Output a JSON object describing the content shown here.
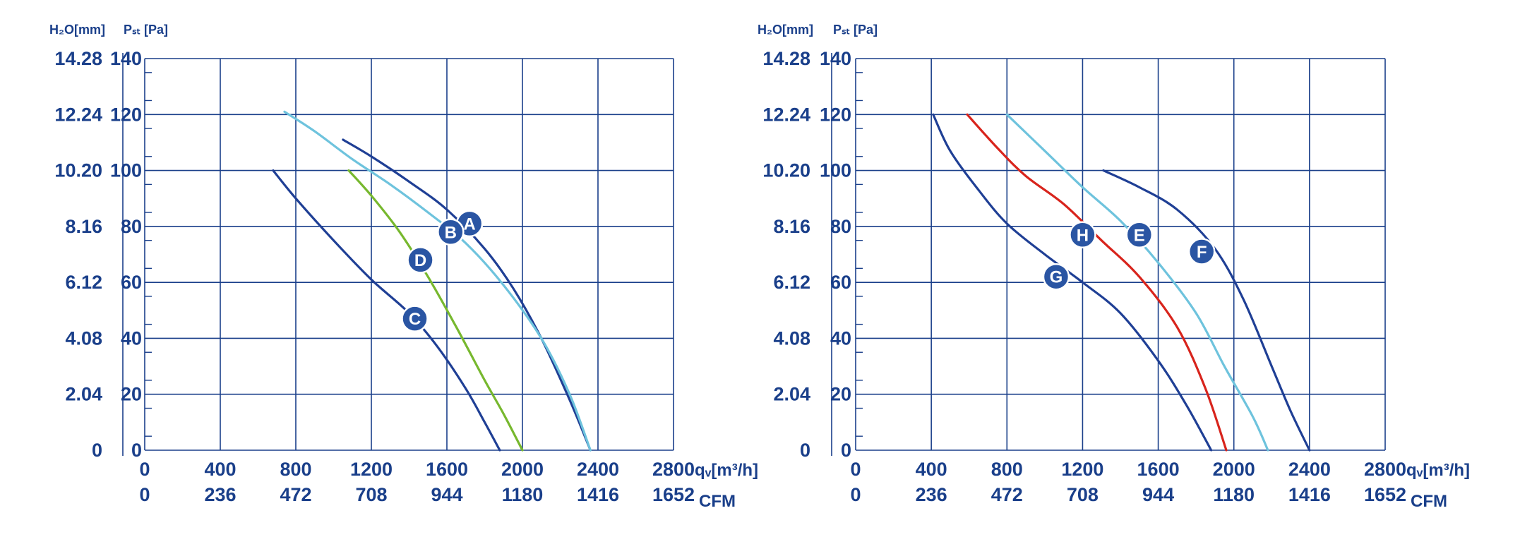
{
  "chart_data": [
    {
      "type": "line",
      "title": "",
      "y_label_left": "H₂O[mm]",
      "y_label_right": "Pₛₜ [Pa]",
      "x_label": "qᵥ[m³/h]",
      "x_label_secondary": "CFM",
      "xlim": [
        0,
        2800
      ],
      "ylim": [
        0,
        140
      ],
      "grid": true,
      "x_ticks": [
        "0",
        "400",
        "800",
        "1200",
        "1600",
        "2000",
        "2400",
        "2800"
      ],
      "x_ticks_secondary": [
        "0",
        "236",
        "472",
        "708",
        "944",
        "1180",
        "1416",
        "1652"
      ],
      "y_ticks": [
        "0",
        "20",
        "40",
        "60",
        "80",
        "100",
        "120",
        "140"
      ],
      "y_ticks_secondary": [
        "0",
        "2.04",
        "4.08",
        "6.12",
        "8.16",
        "10.20",
        "12.24",
        "14.28"
      ],
      "series": [
        {
          "name": "A",
          "color": "#1f3f95",
          "label_at": [
            1720,
            81
          ],
          "x": [
            1050,
            1200,
            1400,
            1600,
            1800,
            1950,
            2100,
            2250,
            2360
          ],
          "y": [
            111,
            105,
            96,
            86,
            72,
            58,
            40,
            18,
            0
          ]
        },
        {
          "name": "B",
          "color": "#6ec3dd",
          "label_at": [
            1620,
            78
          ],
          "x": [
            740,
            900,
            1100,
            1300,
            1500,
            1700,
            1900,
            2100,
            2250,
            2360
          ],
          "y": [
            121,
            114,
            104,
            95,
            85,
            74,
            59,
            40,
            20,
            0
          ]
        },
        {
          "name": "C",
          "color": "#1f3f95",
          "label_at": [
            1430,
            47
          ],
          "x": [
            680,
            800,
            1000,
            1200,
            1400,
            1550,
            1700,
            1800,
            1880
          ],
          "y": [
            100,
            90,
            75,
            61,
            49,
            37,
            22,
            10,
            0
          ]
        },
        {
          "name": "D",
          "color": "#77b82e",
          "label_at": [
            1460,
            68
          ],
          "x": [
            1080,
            1200,
            1350,
            1500,
            1650,
            1800,
            1900,
            2000
          ],
          "y": [
            100,
            91,
            78,
            62,
            44,
            25,
            13,
            0
          ]
        }
      ]
    },
    {
      "type": "line",
      "title": "",
      "y_label_left": "H₂O[mm]",
      "y_label_right": "Pₛₜ [Pa]",
      "x_label": "qᵥ[m³/h]",
      "x_label_secondary": "CFM",
      "xlim": [
        0,
        2800
      ],
      "ylim": [
        0,
        140
      ],
      "grid": true,
      "x_ticks": [
        "0",
        "400",
        "800",
        "1200",
        "1600",
        "2000",
        "2400",
        "2800"
      ],
      "x_ticks_secondary": [
        "0",
        "236",
        "472",
        "708",
        "944",
        "1180",
        "1416",
        "1652"
      ],
      "y_ticks": [
        "0",
        "20",
        "40",
        "60",
        "80",
        "100",
        "120",
        "140"
      ],
      "y_ticks_secondary": [
        "0",
        "2.04",
        "4.08",
        "6.12",
        "8.16",
        "10.20",
        "12.24",
        "14.28"
      ],
      "series": [
        {
          "name": "E",
          "color": "#6ec3dd",
          "label_at": [
            1500,
            77
          ],
          "x": [
            800,
            1000,
            1200,
            1400,
            1600,
            1800,
            1950,
            2100,
            2180
          ],
          "y": [
            120,
            107,
            94,
            82,
            67,
            49,
            30,
            12,
            0
          ]
        },
        {
          "name": "F",
          "color": "#1f3f95",
          "label_at": [
            1830,
            71
          ],
          "x": [
            1310,
            1500,
            1700,
            1900,
            2050,
            2200,
            2300,
            2400
          ],
          "y": [
            100,
            94,
            86,
            72,
            54,
            30,
            14,
            0
          ]
        },
        {
          "name": "G",
          "color": "#1f3f95",
          "label_at": [
            1060,
            62
          ],
          "x": [
            410,
            500,
            650,
            800,
            1000,
            1200,
            1400,
            1600,
            1750,
            1880
          ],
          "y": [
            120,
            107,
            93,
            81,
            70,
            60,
            49,
            32,
            16,
            0
          ]
        },
        {
          "name": "H",
          "color": "#d8241c",
          "label_at": [
            1200,
            77
          ],
          "x": [
            590,
            750,
            900,
            1100,
            1300,
            1500,
            1700,
            1850,
            1960
          ],
          "y": [
            120,
            108,
            98,
            88,
            75,
            62,
            44,
            22,
            0
          ]
        }
      ]
    }
  ]
}
